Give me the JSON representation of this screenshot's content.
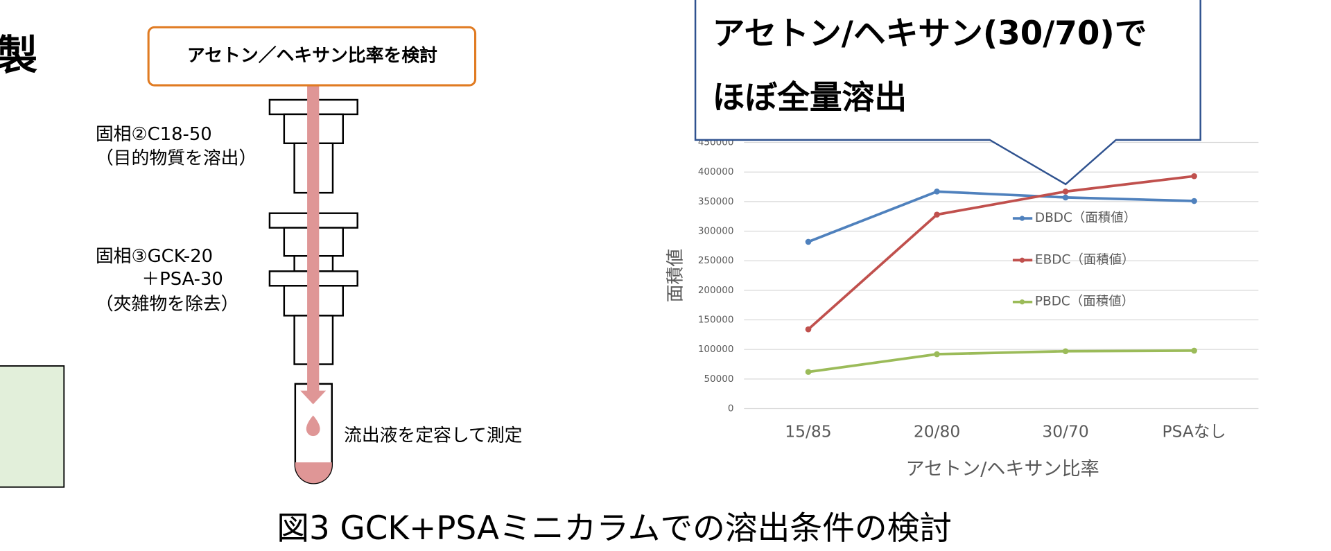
{
  "slide": {
    "heading_fragment": "製",
    "step_box": "アセトン／ヘキサン比率を検討",
    "column1_name": "固相②C18-50",
    "column1_note": "（目的物質を溶出）",
    "column2_name": "固相③GCK-20",
    "column2_name_2": "＋PSA-30",
    "column2_note": "（夾雑物を除去）",
    "eluate_note": "流出液を定容して測定",
    "caption": "図3 GCK+PSAミニカラムでの溶出条件の検討"
  },
  "chart_data": {
    "type": "line",
    "callout": [
      "アセトン/ヘキサン(30/70)で",
      "ほぼ全量溶出"
    ],
    "x_label": "アセトン/ヘキサン比率",
    "y_label": "面積値",
    "categories": [
      "15/85",
      "20/80",
      "30/70",
      "PSAなし"
    ],
    "series": [
      {
        "name": "DBDC（面積値）",
        "color": "#4f81bd",
        "values": [
          282000,
          367000,
          357000,
          351000
        ]
      },
      {
        "name": "EBDC（面積値）",
        "color": "#c0504d",
        "values": [
          134000,
          328000,
          367000,
          393000
        ]
      },
      {
        "name": "PBDC（面積値）",
        "color": "#9bbb59",
        "values": [
          62000,
          92000,
          97000,
          98000
        ]
      }
    ],
    "ylim": [
      0,
      450000
    ],
    "yticks": [
      0,
      50000,
      100000,
      150000,
      200000,
      250000,
      300000,
      350000,
      400000,
      450000
    ],
    "grid": true
  }
}
